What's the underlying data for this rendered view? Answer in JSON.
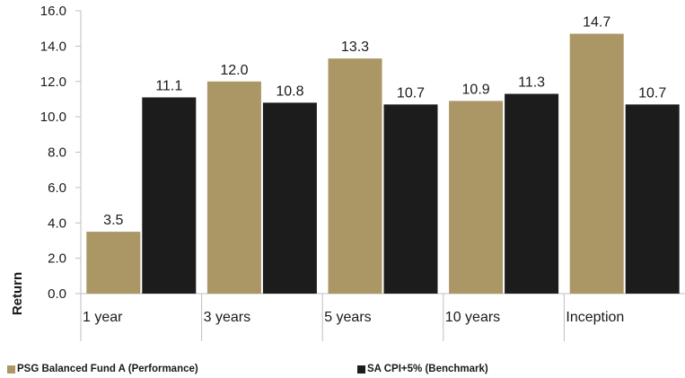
{
  "chart_data": {
    "type": "bar",
    "categories": [
      "1 year",
      "3 years",
      "5 years",
      "10 years",
      "Inception"
    ],
    "series": [
      {
        "name": "PSG Balanced Fund A (Performance)",
        "values": [
          3.5,
          12.0,
          13.3,
          10.9,
          14.7
        ],
        "color": "#ab9766"
      },
      {
        "name": "SA CPI+5% (Benchmark)",
        "values": [
          11.1,
          10.8,
          10.7,
          11.3,
          10.7
        ],
        "color": "#1c1c1c"
      }
    ],
    "data_labels": [
      [
        "3.5",
        "12.0",
        "13.3",
        "10.9",
        "14.7"
      ],
      [
        "11.1",
        "10.8",
        "10.7",
        "11.3",
        "10.7"
      ]
    ],
    "yticks": [
      "0.0",
      "2.0",
      "4.0",
      "6.0",
      "8.0",
      "10.0",
      "12.0",
      "14.0",
      "16.0"
    ],
    "ylabel": "Return",
    "xlabel": "",
    "title": "",
    "ylim": [
      0,
      16
    ],
    "grid": false,
    "legend_position": "bottom"
  }
}
